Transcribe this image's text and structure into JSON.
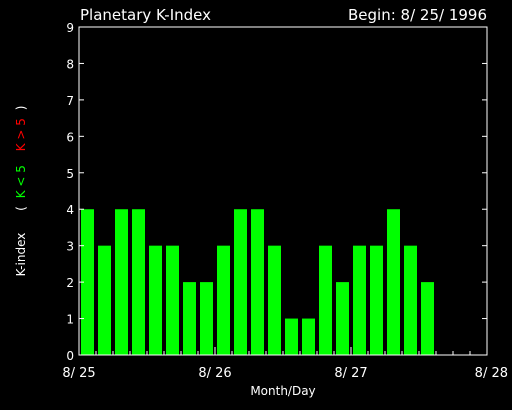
{
  "chart_data": {
    "type": "bar",
    "title": "Planetary K-Index",
    "subtitle": "Begin: 8/ 25/ 1996",
    "xlabel": "Month/Day",
    "ylabel": "K-index",
    "ylabel_legend": {
      "open": "(",
      "low": "K < 5",
      "high": "K > 5",
      "close": ")"
    },
    "ylim": [
      0,
      9
    ],
    "yticks": [
      "0",
      "1",
      "2",
      "3",
      "4",
      "5",
      "6",
      "7",
      "8",
      "9"
    ],
    "xlim_days": [
      0,
      3
    ],
    "xticks": [
      "8/ 25",
      "8/ 26",
      "8/ 27",
      "8/ 28"
    ],
    "values": [
      4,
      3,
      4,
      4,
      3,
      3,
      2,
      2,
      3,
      4,
      4,
      3,
      1,
      1,
      3,
      2,
      3,
      3,
      4,
      3,
      2
    ],
    "interval_hours": 3,
    "colors": {
      "background": "#000000",
      "axes": "#ffffff",
      "low": "#00ff00",
      "high": "#ff0000"
    }
  }
}
